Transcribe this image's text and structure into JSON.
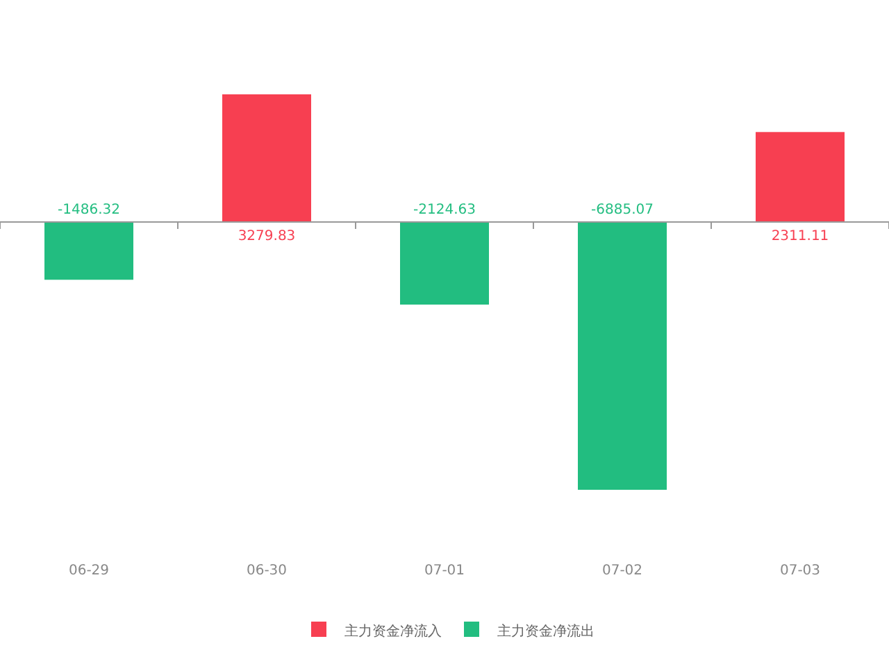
{
  "chart_data": {
    "type": "bar",
    "categories": [
      "06-29",
      "06-30",
      "07-01",
      "07-02",
      "07-03"
    ],
    "series": [
      {
        "name": "主力资金净流入",
        "color": "#f73f51",
        "values": [
          null,
          3279.83,
          null,
          null,
          2311.11
        ]
      },
      {
        "name": "主力资金净流出",
        "color": "#22bd80",
        "values": [
          -1486.32,
          null,
          -2124.63,
          -6885.07,
          null
        ]
      }
    ],
    "data_labels": true,
    "legend": "bottom"
  }
}
